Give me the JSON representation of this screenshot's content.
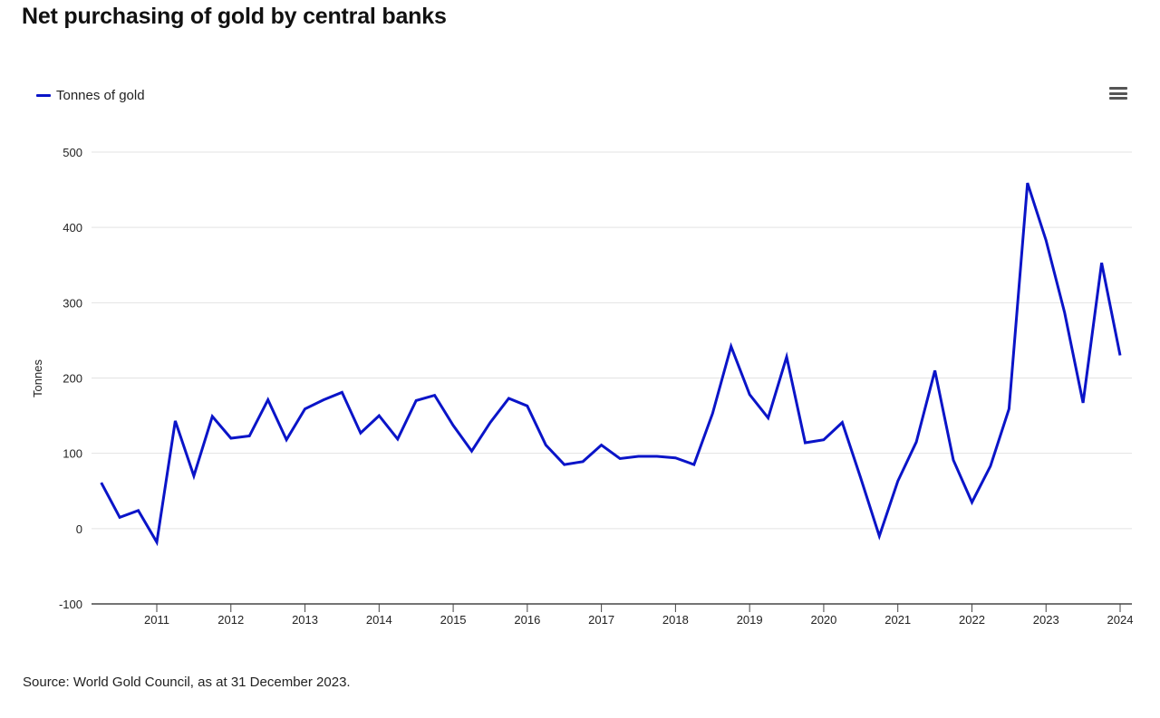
{
  "title": "Net purchasing of gold by central banks",
  "menu_icon": "hamburger-menu-icon",
  "source": "Source: World Gold Council, as at 31 December 2023.",
  "chart_data": {
    "type": "line",
    "title": "Net purchasing of gold by central banks",
    "xlabel": "",
    "ylabel": "Tonnes",
    "ylim": [
      -100,
      500
    ],
    "yticks": [
      "500",
      "400",
      "300",
      "200",
      "100",
      "0",
      "-100"
    ],
    "ytick_values": [
      500,
      400,
      300,
      200,
      100,
      0,
      -100
    ],
    "xticks": [
      "2011",
      "2012",
      "2013",
      "2014",
      "2015",
      "2016",
      "2017",
      "2018",
      "2019",
      "2020",
      "2021",
      "2022",
      "2023",
      "2024"
    ],
    "xtick_values": [
      2011,
      2012,
      2013,
      2014,
      2015,
      2016,
      2017,
      2018,
      2019,
      2020,
      2021,
      2022,
      2023,
      2024
    ],
    "xlim": [
      2010.0,
      2024.15
    ],
    "grid": true,
    "legend_position": "top-left",
    "series": [
      {
        "name": "Tonnes of gold",
        "color": "#0a14c8",
        "x": [
          2010.25,
          2010.5,
          2010.75,
          2011.0,
          2011.25,
          2011.5,
          2011.75,
          2012.0,
          2012.25,
          2012.5,
          2012.75,
          2013.0,
          2013.25,
          2013.5,
          2013.75,
          2014.0,
          2014.25,
          2014.5,
          2014.75,
          2015.0,
          2015.25,
          2015.5,
          2015.75,
          2016.0,
          2016.25,
          2016.5,
          2016.75,
          2017.0,
          2017.25,
          2017.5,
          2017.75,
          2018.0,
          2018.25,
          2018.5,
          2018.75,
          2019.0,
          2019.25,
          2019.5,
          2019.75,
          2020.0,
          2020.25,
          2020.5,
          2020.75,
          2021.0,
          2021.25,
          2021.5,
          2021.75,
          2022.0,
          2022.25,
          2022.5,
          2022.75,
          2023.0,
          2023.25,
          2023.5,
          2023.75,
          2024.0
        ],
        "values": [
          61,
          15,
          24,
          -18,
          143,
          70,
          149,
          120,
          123,
          171,
          118,
          159,
          171,
          181,
          127,
          150,
          119,
          170,
          177,
          137,
          103,
          141,
          173,
          163,
          111,
          85,
          89,
          111,
          93,
          96,
          96,
          94,
          85,
          153,
          242,
          178,
          147,
          228,
          114,
          118,
          141,
          67,
          -10,
          63,
          115,
          210,
          91,
          35,
          83,
          159,
          459,
          383,
          287,
          167,
          353,
          230
        ]
      }
    ]
  }
}
